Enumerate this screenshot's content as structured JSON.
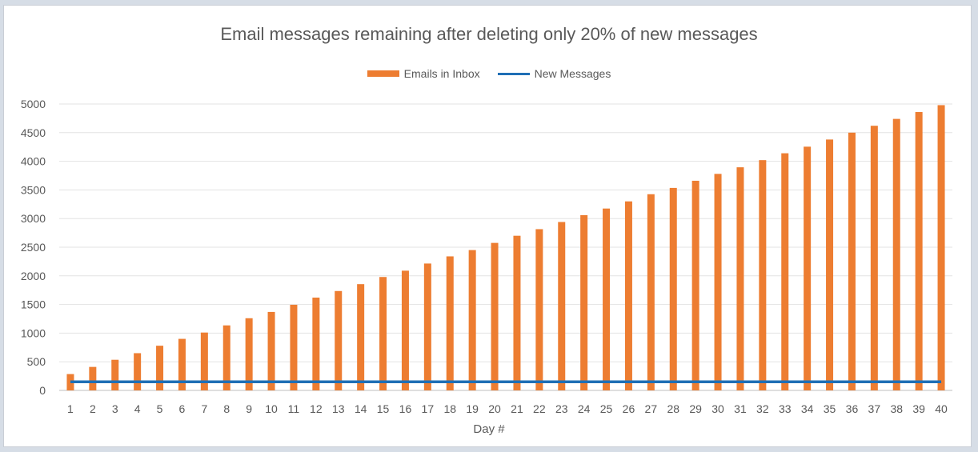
{
  "chart_data": {
    "type": "bar",
    "title": "Email messages remaining after deleting only 20% of new messages",
    "xlabel": "Day #",
    "ylabel": "",
    "ylim": [
      0,
      5000
    ],
    "yticks": [
      0,
      500,
      1000,
      1500,
      2000,
      2500,
      3000,
      3500,
      4000,
      4500,
      5000
    ],
    "grid": true,
    "legend_position": "top-center",
    "categories": [
      "1",
      "2",
      "3",
      "4",
      "5",
      "6",
      "7",
      "8",
      "9",
      "10",
      "11",
      "12",
      "13",
      "14",
      "15",
      "16",
      "17",
      "18",
      "19",
      "20",
      "21",
      "22",
      "23",
      "24",
      "25",
      "26",
      "27",
      "28",
      "29",
      "30",
      "31",
      "32",
      "33",
      "34",
      "35",
      "36",
      "37",
      "38",
      "39",
      "40"
    ],
    "series": [
      {
        "name": "Emails in Inbox",
        "kind": "bar",
        "color": "#ed7d31",
        "values": [
          285,
          410,
          535,
          650,
          780,
          900,
          1010,
          1135,
          1260,
          1370,
          1495,
          1620,
          1735,
          1855,
          1980,
          2090,
          2215,
          2340,
          2450,
          2575,
          2700,
          2815,
          2940,
          3060,
          3175,
          3300,
          3425,
          3535,
          3660,
          3780,
          3895,
          4020,
          4140,
          4255,
          4380,
          4500,
          4620,
          4740,
          4860,
          4980
        ]
      },
      {
        "name": "New Messages",
        "kind": "line",
        "color": "#1f6fb5",
        "values": [
          150,
          150,
          150,
          150,
          150,
          150,
          150,
          150,
          150,
          150,
          150,
          150,
          150,
          150,
          150,
          150,
          150,
          150,
          150,
          150,
          150,
          150,
          150,
          150,
          150,
          150,
          150,
          150,
          150,
          150,
          150,
          150,
          150,
          150,
          150,
          150,
          150,
          150,
          150,
          150
        ]
      }
    ]
  }
}
